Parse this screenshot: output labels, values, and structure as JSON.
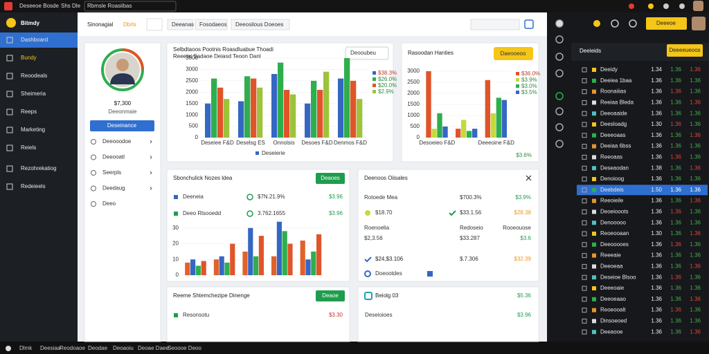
{
  "topbar": {
    "items": [
      "Deseeoe Bosde",
      "Shs Dle",
      "Rbmsle Roasiibas"
    ]
  },
  "sidebar": {
    "brand": "Bitmdy",
    "items": [
      "Dashboard",
      "Bundy",
      "Reoodeals",
      "Sheimeria",
      "Reeps",
      "Marketing",
      "Reiels",
      "Rezohrekatiog",
      "Redeieels"
    ],
    "active": 0
  },
  "header": {
    "title": "Sinonagial",
    "title_accent": "Dbrls",
    "tabs": [
      "Deeanas",
      "Fosodaeos",
      "Deeosilous Doeoes"
    ]
  },
  "profile": {
    "amount": "$7,300",
    "caption": "Deeonmaie",
    "button": "Deseinance",
    "menu": [
      "Deeooodoe",
      "Deeooatl",
      "Seerpls",
      "Deedaug",
      "Deeo"
    ]
  },
  "chart_data": [
    {
      "type": "bar",
      "title": "Selbdtaoos Pootnis Roasdluabue Thoadi",
      "subtitle": "Reeelai Sadaoe Deiasd Teoon Danl",
      "control": "Deooubeu",
      "legend_note": "Deseierie",
      "categories": [
        "Deseiee F&D",
        "Deselsg ES",
        "Onnolsis",
        "Desoes F&D",
        "Denmos F&D"
      ],
      "series": [
        {
          "name": "$38.3%",
          "color": "#3567c2",
          "values": [
            1500,
            1600,
            2800,
            1500,
            2600
          ]
        },
        {
          "name": "$26.0%",
          "color": "#2fae4e",
          "values": [
            2600,
            2700,
            3300,
            2500,
            3500
          ]
        },
        {
          "name": "$20.0%",
          "color": "#e0542a",
          "values": [
            2200,
            2600,
            2100,
            2100,
            2500
          ]
        },
        {
          "name": "$2.9%",
          "color": "#9dc33b",
          "values": [
            1700,
            2200,
            1900,
            2900,
            1700
          ]
        }
      ],
      "ylim": [
        0,
        3500
      ],
      "yticks": [
        0,
        500,
        1000,
        1500,
        2000,
        2500,
        3000,
        3500
      ],
      "legend": "right"
    },
    {
      "type": "bar",
      "title": "Rasoodan Hanties",
      "control": "Daeooeoo",
      "legend_note": "$3.6%",
      "categories": [
        "Desoeieo F&D",
        null,
        "Deeeoine F&D"
      ],
      "series": [
        {
          "name": "$36.0%",
          "color": "#e0542a",
          "values": [
            3000,
            400,
            2600
          ]
        },
        {
          "name": "$3.9%",
          "color": "#c5d93c",
          "values": [
            400,
            800,
            1100
          ]
        },
        {
          "name": "$3.0%",
          "color": "#2fae4e",
          "values": [
            1100,
            300,
            1800
          ]
        },
        {
          "name": "$3.5%",
          "color": "#3567c2",
          "values": [
            500,
            400,
            1700
          ]
        }
      ],
      "ylim": [
        0,
        3000
      ],
      "yticks": [
        0,
        500,
        1000,
        1500,
        2000,
        2500,
        3000
      ],
      "legend": "right"
    },
    {
      "type": "bar",
      "categories": [
        null,
        null,
        null,
        null,
        null
      ],
      "series": [
        {
          "name": null,
          "color": "#e0622a",
          "values": [
            8,
            10,
            15,
            12,
            22
          ]
        },
        {
          "name": null,
          "color": "#3567c2",
          "values": [
            10,
            12,
            30,
            34,
            10
          ]
        },
        {
          "name": null,
          "color": "#2fae4e",
          "values": [
            6,
            8,
            12,
            28,
            15
          ]
        },
        {
          "name": null,
          "color": "#e0542a",
          "values": [
            9,
            20,
            25,
            20,
            26
          ]
        }
      ],
      "ylim": [
        0,
        40
      ],
      "yticks": [
        0,
        10,
        20,
        30
      ]
    }
  ],
  "cards": {
    "notes": {
      "title": "Sbonchulick Nozes ldea",
      "button": "Deaoes",
      "rows": [
        [
          "Deeneia",
          "$7N.21.9%",
          "$3.96"
        ],
        [
          "Deeo Rlsooedd",
          "3.762.1655",
          "$3.96"
        ]
      ]
    },
    "sales": {
      "title": "Deenoos Oiisales",
      "rows": [
        [
          "Rotoede Mea",
          "$700.3%",
          "$3.9%"
        ],
        [
          "$18.70",
          "$33.1.56",
          "$28.38"
        ],
        [
          "Roenoelia",
          "Redoseio",
          "Rooeouose"
        ],
        [
          "$2,3.56",
          "$33.287",
          "$3.6"
        ],
        [
          "$24,$3.106",
          "$.7.306",
          "$32.39"
        ]
      ],
      "footer": "Doeootdes"
    },
    "dinenge": {
      "title": "Reeme Shtemchezipe Dinenge",
      "button": "Deaoe",
      "row": [
        "Resonsotu",
        "$3.30"
      ]
    },
    "beiolg": {
      "title": "Beiolg 03",
      "value": "$5.36",
      "row": [
        "Deseioioes",
        "$3.96"
      ]
    }
  },
  "right_panel": {
    "title": "Deeieids",
    "button": "Deeeeueoos",
    "top_button": "Deeeoe",
    "selected": 11,
    "rows": [
      [
        "Deeidy",
        "1.34",
        "1.36",
        "1.36",
        "#4caf50",
        "#e04a3a"
      ],
      [
        "Deeiea 1baa",
        "1.36",
        "1.36",
        "1.36",
        "#4caf50",
        "#4caf50"
      ],
      [
        "Roonaiiias",
        "1.36",
        "1.36",
        "1.36",
        "#e04a3a",
        "#4caf50"
      ],
      [
        "Reeiaa Bleda",
        "1.36",
        "1.36",
        "1.36",
        "#4caf50",
        "#e04a3a"
      ],
      [
        "Deeoaaide",
        "1.36",
        "1.36",
        "1.36",
        "#4caf50",
        "#4caf50"
      ],
      [
        "Deesloadg",
        "1.30",
        "1.36",
        "1.36",
        "#e04a3a",
        "#4caf50"
      ],
      [
        "Deeeoaas",
        "1.36",
        "1.36",
        "1.36",
        "#4caf50",
        "#e04a3a"
      ],
      [
        "Deeiaa 6bss",
        "1.36",
        "1.36",
        "1.36",
        "#4caf50",
        "#4caf50"
      ],
      [
        "Reeoaas",
        "1.36",
        "1.36",
        "1.36",
        "#e04a3a",
        "#4caf50"
      ],
      [
        "Deseaodan",
        "1.38",
        "1.36",
        "1.36",
        "#4caf50",
        "#e04a3a"
      ],
      [
        "Denoioog",
        "1.36",
        "1.36",
        "1.36",
        "#4caf50",
        "#4caf50"
      ],
      [
        "Deebdeis",
        "1.50",
        "1.36",
        "1.36",
        "#ffffff",
        "#ffffff"
      ],
      [
        "Reeoieile",
        "1.36",
        "1.36",
        "1.36",
        "#4caf50",
        "#e04a3a"
      ],
      [
        "Deoeiooots",
        "1.36",
        "1.36",
        "1.36",
        "#e04a3a",
        "#4caf50"
      ],
      [
        "Denooooo",
        "1.36",
        "1.36",
        "1.36",
        "#4caf50",
        "#4caf50"
      ],
      [
        "Reoeooaan",
        "1.30",
        "1.36",
        "1.36",
        "#4caf50",
        "#e04a3a"
      ],
      [
        "Deeooooes",
        "1.36",
        "1.36",
        "1.36",
        "#e04a3a",
        "#4caf50"
      ],
      [
        "Reeeaie",
        "1.36",
        "1.36",
        "1.36",
        "#4caf50",
        "#4caf50"
      ],
      [
        "Deeoeaa",
        "1.36",
        "1.36",
        "1.36",
        "#4caf50",
        "#e04a3a"
      ],
      [
        "Deseioe Blsoo",
        "1.36",
        "1.36",
        "1.36",
        "#e04a3a",
        "#4caf50"
      ],
      [
        "Deeeoaie",
        "1.36",
        "1.36",
        "1.36",
        "#4caf50",
        "#4caf50"
      ],
      [
        "Deeoeaao",
        "1.36",
        "1.36",
        "1.36",
        "#4caf50",
        "#e04a3a"
      ],
      [
        "Reoeooalt",
        "1.36",
        "1.36",
        "1.36",
        "#e04a3a",
        "#4caf50"
      ],
      [
        "Dinsoeoed",
        "1.36",
        "1.36",
        "1.36",
        "#4caf50",
        "#4caf50"
      ],
      [
        "Deeaooe",
        "1.36",
        "1.36",
        "1.36",
        "#4caf50",
        "#e04a3a"
      ]
    ]
  },
  "bottombar": {
    "items": [
      "Dlmk",
      "Deesiaa",
      "Reodoaoe",
      "Deodae",
      "Deoaoiu",
      "Deoae Daee",
      "Seoooe Deoo"
    ]
  }
}
